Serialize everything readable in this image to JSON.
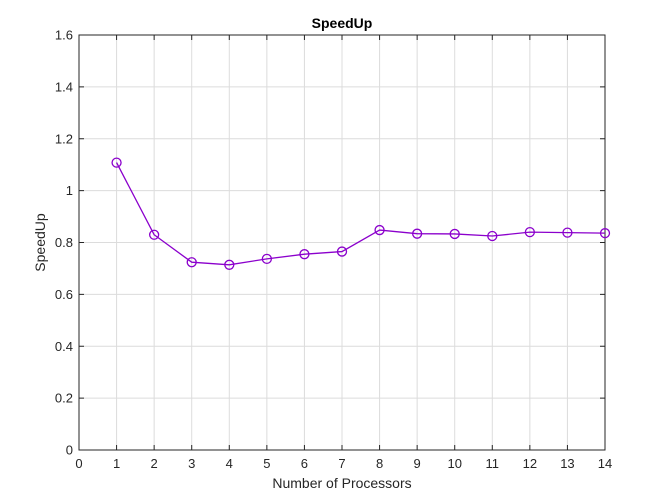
{
  "chart_data": {
    "type": "line",
    "title": "SpeedUp",
    "xlabel": "Number of Processors",
    "ylabel": "SpeedUp",
    "xlim": [
      0,
      14
    ],
    "ylim": [
      0,
      1.6
    ],
    "xticks": [
      0,
      1,
      2,
      3,
      4,
      5,
      6,
      7,
      8,
      9,
      10,
      11,
      12,
      13,
      14
    ],
    "yticks": [
      0,
      0.2,
      0.4,
      0.6,
      0.8,
      1,
      1.2,
      1.4,
      1.6
    ],
    "ytick_labels": [
      "0",
      "0.2",
      "0.4",
      "0.6",
      "0.8",
      "1",
      "1.2",
      "1.4",
      "1.6"
    ],
    "grid": true,
    "series": [
      {
        "color": "#8B00CC",
        "marker": "circle",
        "x": [
          1,
          2,
          3,
          4,
          5,
          6,
          7,
          8,
          9,
          10,
          11,
          12,
          13,
          14
        ],
        "y": [
          1.108,
          0.83,
          0.724,
          0.714,
          0.737,
          0.755,
          0.765,
          0.848,
          0.834,
          0.833,
          0.825,
          0.84,
          0.838,
          0.836
        ]
      }
    ]
  }
}
